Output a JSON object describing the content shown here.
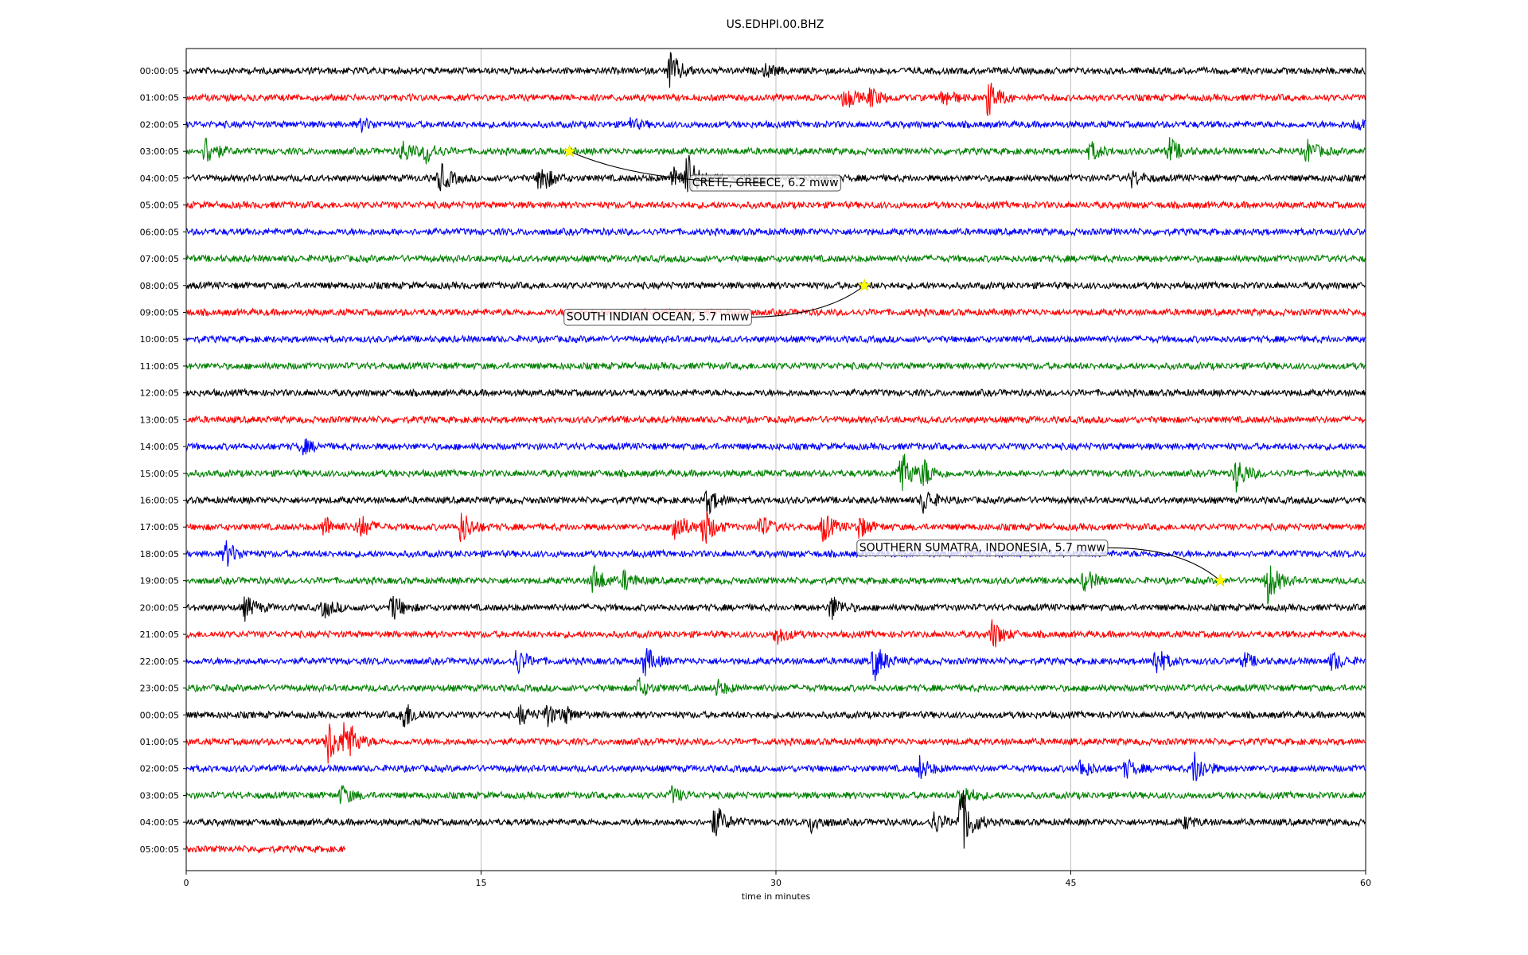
{
  "chart_data": {
    "type": "line",
    "title": "US.EDHPI.00.BHZ",
    "xlabel": "time in minutes",
    "ylabel": "",
    "xlim": [
      0,
      60
    ],
    "x_ticks": [
      "0",
      "15",
      "30",
      "45",
      "60"
    ],
    "grid": "vertical",
    "color_cycle": [
      "#000000",
      "#ff0000",
      "#0000ff",
      "#008000"
    ],
    "rows": [
      {
        "label": "00:00:05",
        "end_minute": 60,
        "events": [
          {
            "t": 24.6,
            "amp": 1.0
          },
          {
            "t": 29.5,
            "amp": 0.3
          }
        ]
      },
      {
        "label": "01:00:05",
        "end_minute": 60,
        "events": [
          {
            "t": 33.5,
            "amp": 0.6
          },
          {
            "t": 34.8,
            "amp": 0.5
          },
          {
            "t": 38.5,
            "amp": 0.5
          },
          {
            "t": 40.8,
            "amp": 1.0
          }
        ]
      },
      {
        "label": "02:00:05",
        "end_minute": 60,
        "events": [
          {
            "t": 8.9,
            "amp": 0.3
          },
          {
            "t": 22.5,
            "amp": 0.3
          },
          {
            "t": 59.5,
            "amp": 0.3
          }
        ]
      },
      {
        "label": "03:00:05",
        "end_minute": 60,
        "events": [
          {
            "t": 1.0,
            "amp": 0.8
          },
          {
            "t": 11.0,
            "amp": 0.6
          },
          {
            "t": 12.2,
            "amp": 0.6
          },
          {
            "t": 46.0,
            "amp": 0.5
          },
          {
            "t": 50.0,
            "amp": 0.7
          },
          {
            "t": 57.0,
            "amp": 0.6
          }
        ]
      },
      {
        "label": "04:00:05",
        "end_minute": 60,
        "events": [
          {
            "t": 12.9,
            "amp": 0.8
          },
          {
            "t": 18.0,
            "amp": 0.9
          },
          {
            "t": 24.8,
            "amp": 0.8
          },
          {
            "t": 25.5,
            "amp": 1.2
          },
          {
            "t": 48.1,
            "amp": 0.4
          }
        ]
      },
      {
        "label": "05:00:05",
        "end_minute": 60,
        "events": []
      },
      {
        "label": "06:00:05",
        "end_minute": 60,
        "events": []
      },
      {
        "label": "07:00:05",
        "end_minute": 60,
        "events": []
      },
      {
        "label": "08:00:05",
        "end_minute": 60,
        "events": []
      },
      {
        "label": "09:00:05",
        "end_minute": 60,
        "events": []
      },
      {
        "label": "10:00:05",
        "end_minute": 60,
        "events": []
      },
      {
        "label": "11:00:05",
        "end_minute": 60,
        "events": []
      },
      {
        "label": "12:00:05",
        "end_minute": 60,
        "events": []
      },
      {
        "label": "13:00:05",
        "end_minute": 60,
        "events": []
      },
      {
        "label": "14:00:05",
        "end_minute": 60,
        "events": [
          {
            "t": 5.9,
            "amp": 0.4
          }
        ]
      },
      {
        "label": "15:00:05",
        "end_minute": 60,
        "events": [
          {
            "t": 36.3,
            "amp": 1.5
          },
          {
            "t": 37.5,
            "amp": 0.7
          },
          {
            "t": 53.4,
            "amp": 0.9
          }
        ]
      },
      {
        "label": "16:00:05",
        "end_minute": 60,
        "events": [
          {
            "t": 26.5,
            "amp": 0.7
          },
          {
            "t": 37.5,
            "amp": 0.7
          }
        ]
      },
      {
        "label": "17:00:05",
        "end_minute": 60,
        "events": [
          {
            "t": 7.0,
            "amp": 0.6
          },
          {
            "t": 8.8,
            "amp": 0.7
          },
          {
            "t": 14.0,
            "amp": 0.9
          },
          {
            "t": 24.8,
            "amp": 1.0
          },
          {
            "t": 26.3,
            "amp": 1.1
          },
          {
            "t": 29.2,
            "amp": 0.6
          },
          {
            "t": 32.4,
            "amp": 0.8
          },
          {
            "t": 34.2,
            "amp": 0.6
          }
        ]
      },
      {
        "label": "18:00:05",
        "end_minute": 60,
        "events": [
          {
            "t": 2.0,
            "amp": 0.7
          }
        ]
      },
      {
        "label": "19:00:05",
        "end_minute": 60,
        "events": [
          {
            "t": 20.7,
            "amp": 0.8
          },
          {
            "t": 22.3,
            "amp": 0.5
          },
          {
            "t": 45.7,
            "amp": 0.6
          },
          {
            "t": 55.0,
            "amp": 1.2
          }
        ]
      },
      {
        "label": "20:00:05",
        "end_minute": 60,
        "events": [
          {
            "t": 3.0,
            "amp": 0.6
          },
          {
            "t": 7.0,
            "amp": 0.5
          },
          {
            "t": 10.5,
            "amp": 0.7
          },
          {
            "t": 32.8,
            "amp": 0.7
          }
        ]
      },
      {
        "label": "21:00:05",
        "end_minute": 60,
        "events": [
          {
            "t": 30.0,
            "amp": 0.5
          },
          {
            "t": 41.0,
            "amp": 0.8
          }
        ]
      },
      {
        "label": "22:00:05",
        "end_minute": 60,
        "events": [
          {
            "t": 16.8,
            "amp": 0.7
          },
          {
            "t": 23.3,
            "amp": 0.8
          },
          {
            "t": 35.0,
            "amp": 1.0
          },
          {
            "t": 49.3,
            "amp": 0.8
          },
          {
            "t": 53.8,
            "amp": 0.4
          },
          {
            "t": 58.3,
            "amp": 0.5
          }
        ]
      },
      {
        "label": "23:00:05",
        "end_minute": 60,
        "events": [
          {
            "t": 23.0,
            "amp": 0.5
          },
          {
            "t": 27.0,
            "amp": 0.4
          }
        ]
      },
      {
        "label": "00:00:05",
        "end_minute": 60,
        "events": [
          {
            "t": 11.0,
            "amp": 0.9
          },
          {
            "t": 17.0,
            "amp": 0.5
          },
          {
            "t": 18.3,
            "amp": 0.6
          },
          {
            "t": 19.2,
            "amp": 0.4
          }
        ]
      },
      {
        "label": "01:00:05",
        "end_minute": 60,
        "events": [
          {
            "t": 7.2,
            "amp": 1.3
          },
          {
            "t": 8.1,
            "amp": 1.3
          }
        ]
      },
      {
        "label": "02:00:05",
        "end_minute": 60,
        "events": [
          {
            "t": 37.3,
            "amp": 0.6
          },
          {
            "t": 45.5,
            "amp": 0.5
          },
          {
            "t": 47.8,
            "amp": 0.5
          },
          {
            "t": 51.3,
            "amp": 0.9
          }
        ]
      },
      {
        "label": "03:00:05",
        "end_minute": 60,
        "events": [
          {
            "t": 7.9,
            "amp": 0.5
          },
          {
            "t": 24.7,
            "amp": 0.4
          },
          {
            "t": 39.4,
            "amp": 0.7
          }
        ]
      },
      {
        "label": "04:00:05",
        "end_minute": 60,
        "events": [
          {
            "t": 26.9,
            "amp": 0.9
          },
          {
            "t": 31.8,
            "amp": 0.5
          },
          {
            "t": 38.0,
            "amp": 0.6
          },
          {
            "t": 39.4,
            "amp": 2.0
          },
          {
            "t": 50.8,
            "amp": 0.3
          }
        ]
      },
      {
        "label": "05:00:05",
        "end_minute": 8.1,
        "events": []
      }
    ],
    "annotations": [
      {
        "text": "CRETE, GREECE, 6.2 mww",
        "row": 3,
        "minute": 19.5,
        "label_row": 4.15,
        "label_minute": 25.5
      },
      {
        "text": "SOUTH INDIAN OCEAN, 5.7 mww",
        "row": 8,
        "minute": 34.5,
        "label_row": 9.15,
        "label_minute": 19.1
      },
      {
        "text": "SOUTHERN SUMATRA, INDONESIA, 5.7 mww",
        "row": 19,
        "minute": 52.6,
        "label_row": 17.75,
        "label_minute": 34.0
      }
    ]
  }
}
